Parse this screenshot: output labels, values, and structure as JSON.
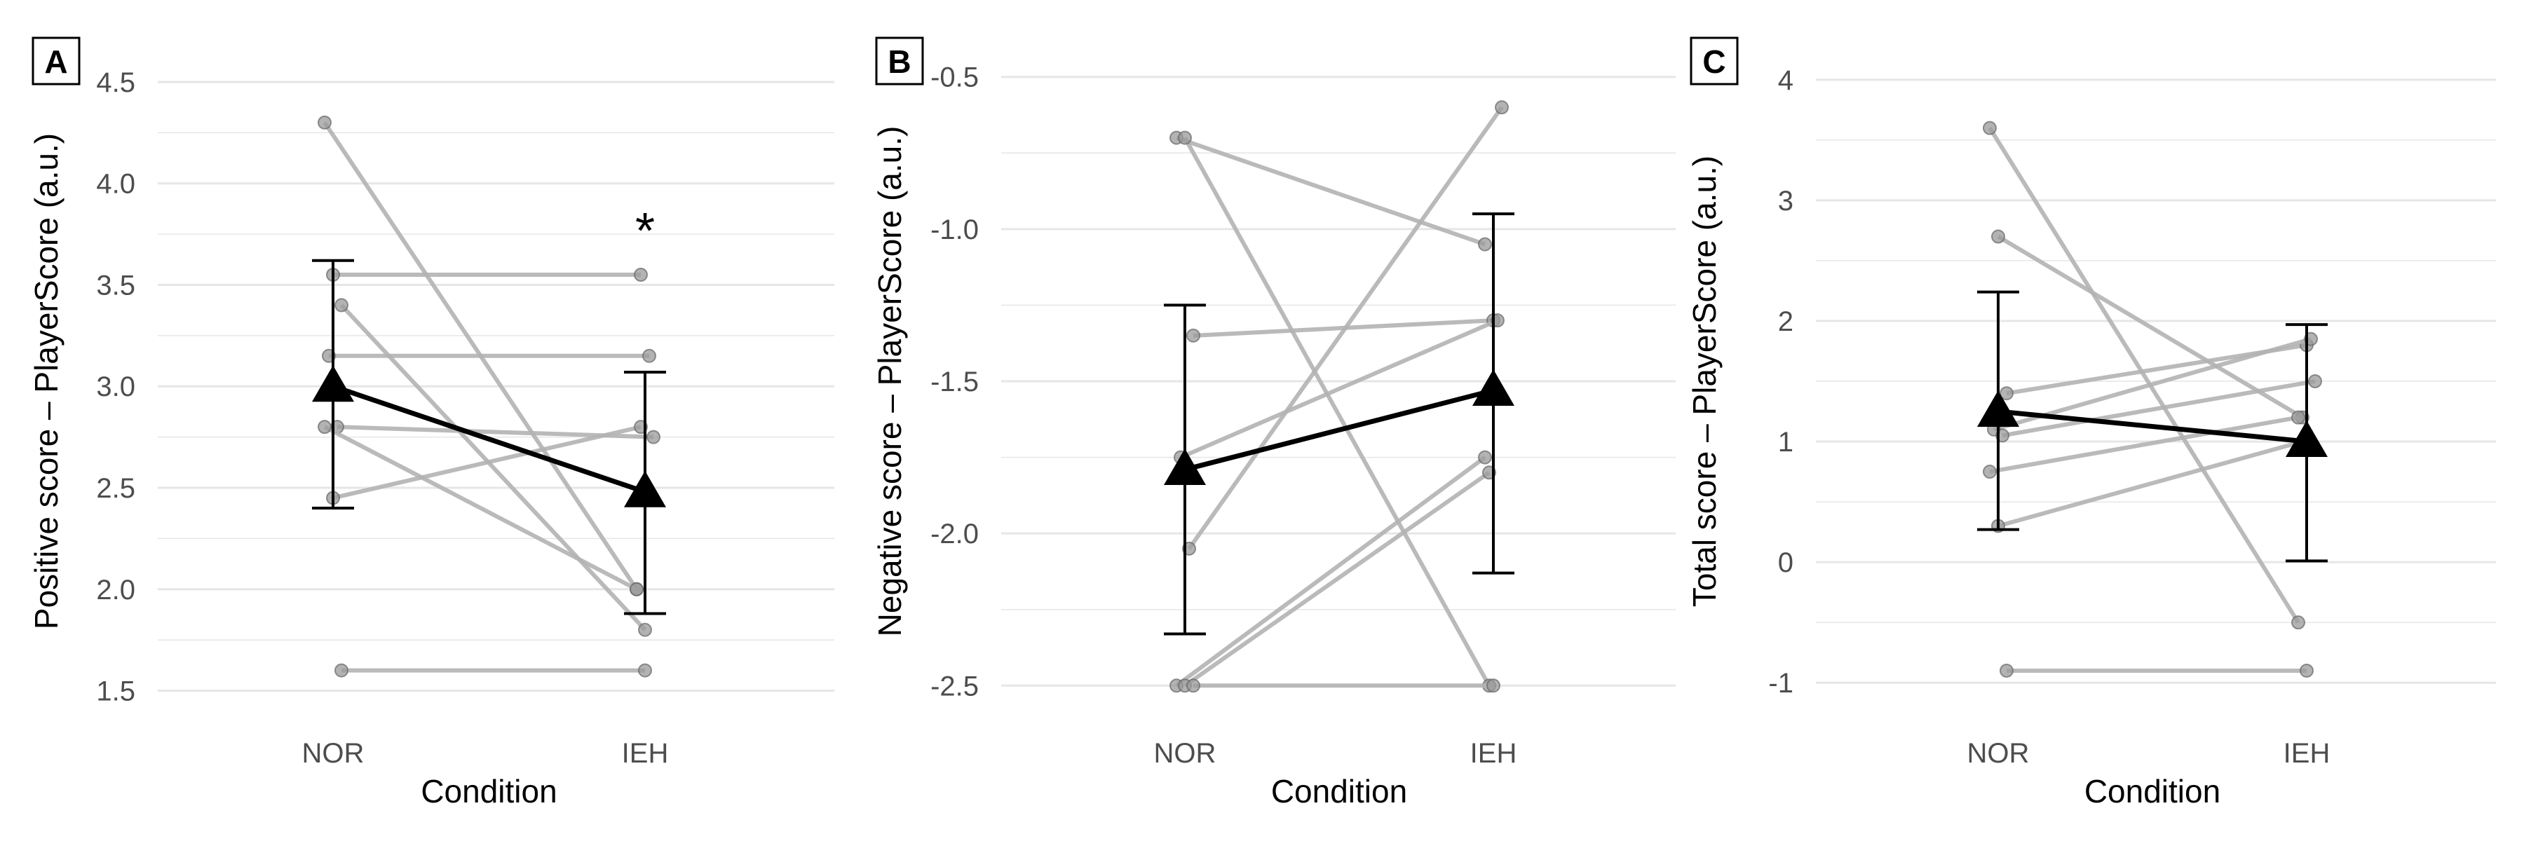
{
  "chart_data": [
    {
      "type": "line",
      "panel_label": "A",
      "xlabel": "Condition",
      "ylabel": "Positive score – PlayerScore (a.u.)",
      "categories": [
        "NOR",
        "IEH"
      ],
      "ylim": [
        1.45,
        4.6
      ],
      "yticks": [
        1.5,
        2.0,
        2.5,
        3.0,
        3.5,
        4.0,
        4.5
      ],
      "ytick_labels": [
        "1.5",
        "2.0",
        "2.5",
        "3.0",
        "3.5",
        "4.0",
        "4.5"
      ],
      "grid": true,
      "participants": [
        {
          "values": [
            4.3,
            2.0
          ]
        },
        {
          "values": [
            3.55,
            3.55
          ]
        },
        {
          "values": [
            3.4,
            1.8
          ]
        },
        {
          "values": [
            3.15,
            3.15
          ]
        },
        {
          "values": [
            2.8,
            2.75
          ]
        },
        {
          "values": [
            2.8,
            2.0
          ]
        },
        {
          "values": [
            2.45,
            2.8
          ]
        },
        {
          "values": [
            1.6,
            1.6
          ]
        }
      ],
      "mean": {
        "values": [
          3.0,
          2.48
        ],
        "err_low": [
          2.4,
          1.88
        ],
        "err_high": [
          3.62,
          3.07
        ]
      },
      "annotation": {
        "text": "*",
        "category": "IEH",
        "y": 3.82
      }
    },
    {
      "type": "line",
      "panel_label": "B",
      "xlabel": "Condition",
      "ylabel": "Negative score – PlayerScore (a.u.)",
      "categories": [
        "NOR",
        "IEH"
      ],
      "ylim": [
        -2.55,
        -0.45
      ],
      "yticks": [
        -2.5,
        -2.0,
        -1.5,
        -1.0,
        -0.5
      ],
      "ytick_labels": [
        "-2.5",
        "-2.0",
        "-1.5",
        "-1.0",
        "-0.5"
      ],
      "grid": true,
      "participants": [
        {
          "values": [
            -0.7,
            -1.05
          ]
        },
        {
          "values": [
            -0.7,
            -2.5
          ]
        },
        {
          "values": [
            -1.35,
            -1.3
          ]
        },
        {
          "values": [
            -1.75,
            -1.3
          ]
        },
        {
          "values": [
            -2.05,
            -0.6
          ]
        },
        {
          "values": [
            -2.5,
            -1.75
          ]
        },
        {
          "values": [
            -2.5,
            -1.8
          ]
        },
        {
          "values": [
            -2.5,
            -2.5
          ]
        }
      ],
      "mean": {
        "values": [
          -1.79,
          -1.53
        ],
        "err_low": [
          -2.33,
          -2.13
        ],
        "err_high": [
          -1.25,
          -0.95
        ]
      },
      "annotation": null
    },
    {
      "type": "line",
      "panel_label": "C",
      "xlabel": "Condition",
      "ylabel": "Total score – PlayerScore (a.u.)",
      "categories": [
        "NOR",
        "IEH"
      ],
      "ylim": [
        -1.15,
        4.15
      ],
      "yticks": [
        -1,
        0,
        1,
        2,
        3,
        4
      ],
      "ytick_labels": [
        "-1",
        "0",
        "1",
        "2",
        "3",
        "4"
      ],
      "grid": true,
      "participants": [
        {
          "values": [
            3.6,
            -0.5
          ]
        },
        {
          "values": [
            2.7,
            1.2
          ]
        },
        {
          "values": [
            1.4,
            1.8
          ]
        },
        {
          "values": [
            1.1,
            1.85
          ]
        },
        {
          "values": [
            1.05,
            1.5
          ]
        },
        {
          "values": [
            0.75,
            1.2
          ]
        },
        {
          "values": [
            0.3,
            1.0
          ]
        },
        {
          "values": [
            -0.9,
            -0.9
          ]
        }
      ],
      "mean": {
        "values": [
          1.25,
          1.0
        ],
        "err_low": [
          0.27,
          0.01
        ],
        "err_high": [
          2.24,
          1.97
        ]
      },
      "annotation": null
    }
  ],
  "colors": {
    "participant_line": "#b3b3b3",
    "participant_point": "#999999",
    "mean": "#000000",
    "grid": "#e6e6e6",
    "tick_text": "#4d4d4d"
  }
}
